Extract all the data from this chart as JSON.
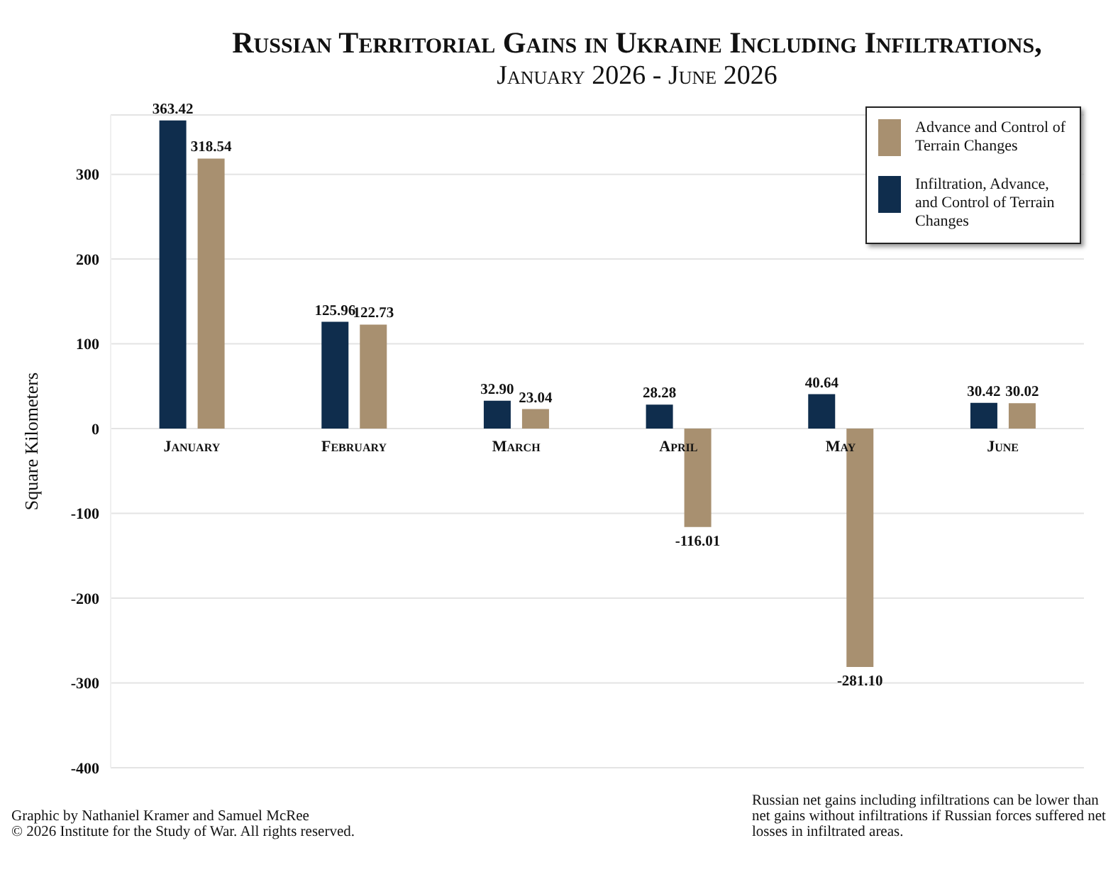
{
  "chart_data": {
    "type": "bar",
    "title": "Russian Territorial Gains in Ukraine Including Infiltrations,",
    "subtitle": "January 2026 - June 2026",
    "ylabel": "Square Kilometers",
    "categories": [
      "January",
      "February",
      "March",
      "April",
      "May",
      "June"
    ],
    "series": [
      {
        "name": "Infiltration, Advance, and Control of Terrain Changes",
        "color": "#0f2d4d",
        "values": [
          363.42,
          125.96,
          32.9,
          28.28,
          40.64,
          30.42
        ],
        "value_labels": [
          "363.42",
          "125.96",
          "32.90",
          "28.28",
          "40.64",
          "30.42"
        ]
      },
      {
        "name": "Advance and Control of Terrain Changes",
        "color": "#a89070",
        "values": [
          318.54,
          122.73,
          23.04,
          -116.01,
          -281.1,
          30.02
        ],
        "value_labels": [
          "318.54",
          "122.73",
          "23.04",
          "-116.01",
          "-281.10",
          "30.02"
        ]
      }
    ],
    "ylim": [
      -400,
      370
    ],
    "yticks": [
      -400,
      -300,
      -200,
      -100,
      0,
      100,
      200,
      300
    ],
    "grid": "y",
    "legend": "top right",
    "annotations": [
      "Graphic by Nathaniel Kramer and Samuel McRee",
      "© 2026 Institute for the Study of War. All rights reserved.",
      "Russian net gains including infiltrations can be lower than net gains without infiltrations if Russian forces suffered net losses in infiltrated areas."
    ]
  }
}
